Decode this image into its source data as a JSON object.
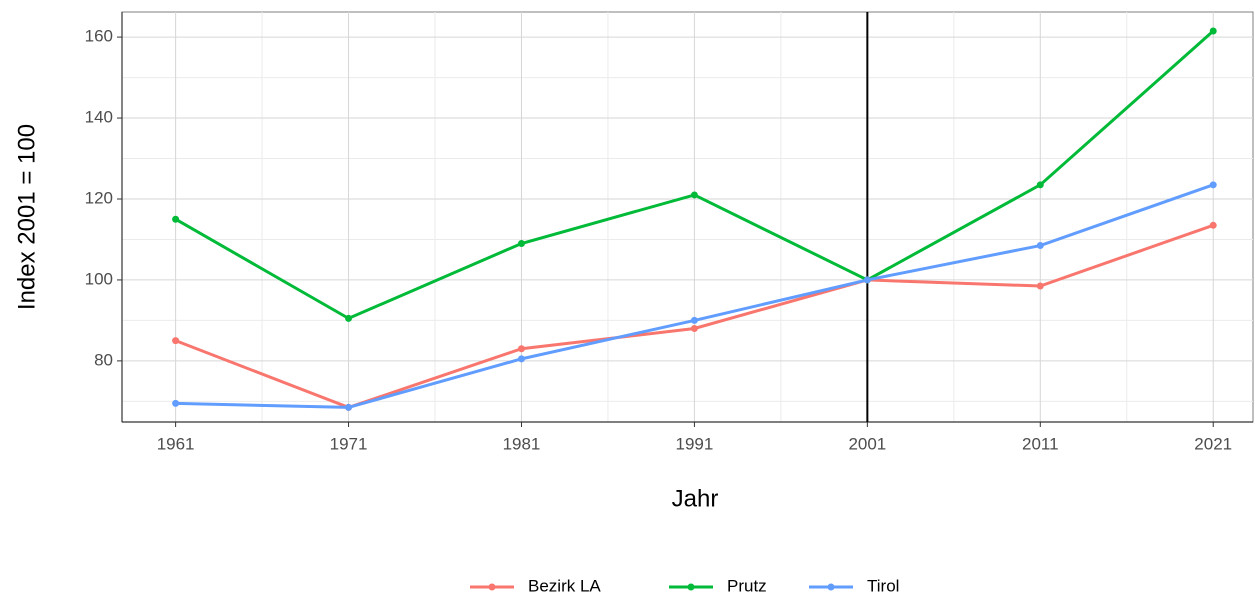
{
  "chart_data": {
    "type": "line",
    "x_label": "Jahr",
    "y_label": "Index 2001 = 100",
    "x": [
      1961,
      1971,
      1981,
      1991,
      2001,
      2011,
      2021
    ],
    "series": [
      {
        "name": "Bezirk LA",
        "color": "#F8766D",
        "values": [
          85,
          68.5,
          83,
          88,
          100,
          98.5,
          113.5
        ]
      },
      {
        "name": "Prutz",
        "color": "#00BA38",
        "values": [
          115,
          90.5,
          109,
          121,
          100,
          123.5,
          161.5
        ]
      },
      {
        "name": "Tirol",
        "color": "#619CFF",
        "values": [
          69.5,
          68.5,
          80.5,
          90,
          100,
          108.5,
          123.5
        ]
      }
    ],
    "xlim": [
      1957.9,
      2023.3
    ],
    "xticks": [
      1961,
      1971,
      1981,
      1991,
      2001,
      2011,
      2021
    ],
    "xminor": [
      1966,
      1976,
      1986,
      1996,
      2006,
      2016
    ],
    "ylim": [
      64.9,
      166.2
    ],
    "yticks": [
      80,
      100,
      120,
      140,
      160
    ],
    "yminor": [
      70,
      90,
      110,
      130,
      150
    ],
    "vline": 2001,
    "vline_color": "#000000",
    "grid": true,
    "legend": "bottom"
  }
}
